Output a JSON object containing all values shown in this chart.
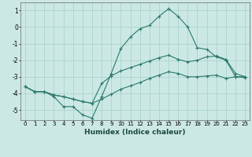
{
  "xlabel": "Humidex (Indice chaleur)",
  "ylabel": "",
  "xlim": [
    -0.5,
    23.5
  ],
  "ylim": [
    -5.6,
    1.5
  ],
  "yticks": [
    1,
    0,
    -1,
    -2,
    -3,
    -4,
    -5
  ],
  "xticks": [
    0,
    1,
    2,
    3,
    4,
    5,
    6,
    7,
    8,
    9,
    10,
    11,
    12,
    13,
    14,
    15,
    16,
    17,
    18,
    19,
    20,
    21,
    22,
    23
  ],
  "bg_color": "#cce8e4",
  "grid_color": "#aad4cc",
  "line_color": "#2a7a6a",
  "line1_x": [
    0,
    1,
    2,
    3,
    4,
    5,
    6,
    7,
    8,
    9,
    10,
    11,
    12,
    13,
    14,
    15,
    16,
    17,
    18,
    19,
    20,
    21,
    22,
    23
  ],
  "line1_y": [
    -3.6,
    -3.9,
    -3.9,
    -4.2,
    -4.8,
    -4.8,
    -5.3,
    -5.5,
    -4.2,
    -2.8,
    -1.3,
    -0.6,
    -0.1,
    0.1,
    0.65,
    1.1,
    0.65,
    0.0,
    -1.25,
    -1.35,
    -1.8,
    -2.0,
    -3.0,
    -3.0
  ],
  "line2_x": [
    0,
    1,
    2,
    3,
    4,
    5,
    6,
    7,
    8,
    9,
    10,
    11,
    12,
    13,
    14,
    15,
    16,
    17,
    18,
    19,
    20,
    21,
    22,
    23
  ],
  "line2_y": [
    -3.6,
    -3.9,
    -3.9,
    -4.1,
    -4.2,
    -4.35,
    -4.5,
    -4.6,
    -3.4,
    -2.95,
    -2.65,
    -2.45,
    -2.25,
    -2.05,
    -1.85,
    -1.7,
    -1.95,
    -2.1,
    -2.0,
    -1.8,
    -1.75,
    -1.95,
    -2.8,
    -3.0
  ],
  "line3_x": [
    0,
    1,
    2,
    3,
    4,
    5,
    6,
    7,
    8,
    9,
    10,
    11,
    12,
    13,
    14,
    15,
    16,
    17,
    18,
    19,
    20,
    21,
    22,
    23
  ],
  "line3_y": [
    -3.6,
    -3.9,
    -3.9,
    -4.1,
    -4.2,
    -4.35,
    -4.5,
    -4.6,
    -4.35,
    -4.05,
    -3.75,
    -3.55,
    -3.35,
    -3.1,
    -2.9,
    -2.7,
    -2.8,
    -3.0,
    -3.0,
    -2.95,
    -2.9,
    -3.1,
    -3.0,
    -3.05
  ]
}
